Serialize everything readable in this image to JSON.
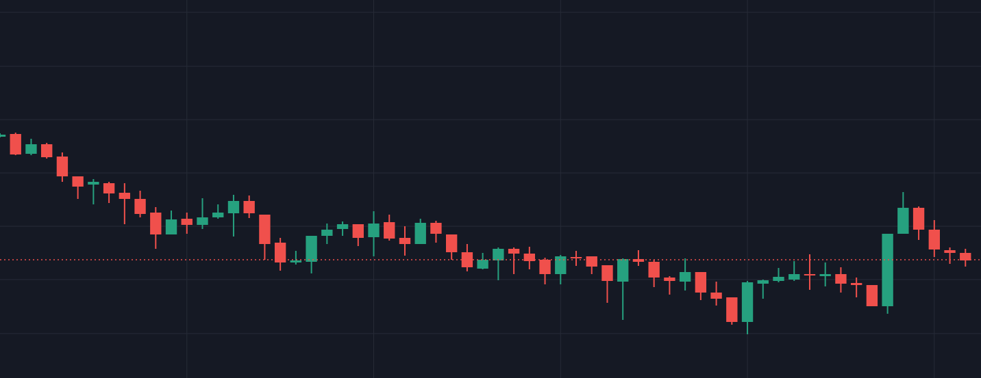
{
  "chart_data": {
    "type": "candlestick",
    "x": [
      -1,
      0,
      1,
      2,
      3,
      4,
      5,
      6,
      7,
      8,
      9,
      10,
      11,
      12,
      13,
      14,
      15,
      16,
      17,
      18,
      19,
      20,
      21,
      22,
      23,
      24,
      25,
      26,
      27,
      28,
      29,
      30,
      31,
      32,
      33,
      34,
      35,
      36,
      37,
      38,
      39,
      40,
      41,
      42,
      43,
      44,
      45,
      46,
      47,
      48,
      49,
      50,
      51,
      52,
      53,
      54,
      55,
      56,
      57,
      58,
      59,
      60,
      61
    ],
    "open": [
      353,
      357,
      328,
      342,
      324,
      295,
      283,
      285,
      271,
      262,
      242,
      210,
      233,
      224,
      235,
      241,
      259,
      239,
      198,
      169,
      170,
      208,
      218,
      225,
      206,
      228,
      205,
      196,
      227,
      210,
      184,
      160,
      172,
      189,
      182,
      173,
      152,
      177,
      178,
      165,
      141,
      174,
      170,
      147,
      141,
      155,
      125,
      118,
      82,
      138,
      142,
      144,
      152,
      149,
      152,
      139,
      136,
      105,
      211,
      249,
      217,
      187,
      183
    ],
    "high": [
      358,
      359,
      350,
      344,
      330,
      295,
      291,
      287,
      285,
      274,
      250,
      245,
      242,
      263,
      254,
      268,
      267,
      239,
      205,
      186,
      208,
      226,
      229,
      225,
      244,
      239,
      222,
      233,
      230,
      210,
      196,
      183,
      191,
      191,
      192,
      176,
      180,
      186,
      178,
      165,
      175,
      187,
      173,
      149,
      175,
      155,
      141,
      118,
      142,
      144,
      161,
      171,
      181,
      169,
      162,
      147,
      136,
      211,
      272,
      251,
      231,
      191,
      189
    ],
    "low": [
      352,
      326,
      326,
      321,
      287,
      262,
      254,
      256,
      225,
      235,
      189,
      210,
      211,
      218,
      233,
      207,
      234,
      173,
      157,
      166,
      153,
      196,
      208,
      193,
      178,
      201,
      179,
      196,
      198,
      173,
      156,
      159,
      143,
      152,
      159,
      137,
      137,
      164,
      152,
      110,
      85,
      164,
      133,
      122,
      128,
      114,
      106,
      78,
      64,
      116,
      140,
      142,
      129,
      134,
      125,
      118,
      105,
      94,
      211,
      202,
      177,
      167,
      163
    ],
    "close": [
      356,
      327,
      342,
      323,
      295,
      280,
      287,
      270,
      262,
      240,
      210,
      232,
      224,
      235,
      242,
      259,
      241,
      196,
      169,
      172,
      208,
      217,
      225,
      205,
      226,
      204,
      196,
      227,
      211,
      184,
      162,
      173,
      189,
      182,
      171,
      152,
      178,
      175,
      163,
      142,
      174,
      170,
      147,
      142,
      155,
      125,
      116,
      82,
      140,
      143,
      148,
      152,
      150,
      152,
      138,
      136,
      105,
      211,
      249,
      217,
      188,
      183,
      172
    ],
    "up_color": "#26a17f",
    "down_color": "#f0504c",
    "xlim": [
      -1,
      62
    ],
    "xticks": [
      11,
      23,
      35,
      47,
      59
    ],
    "ylim": [
      0,
      553
    ],
    "yticks": [
      65,
      144,
      222,
      300,
      378,
      456,
      535
    ],
    "grid": true,
    "grid_color": "#262b37",
    "price_line": 173,
    "price_line_color": "#f0504c"
  }
}
